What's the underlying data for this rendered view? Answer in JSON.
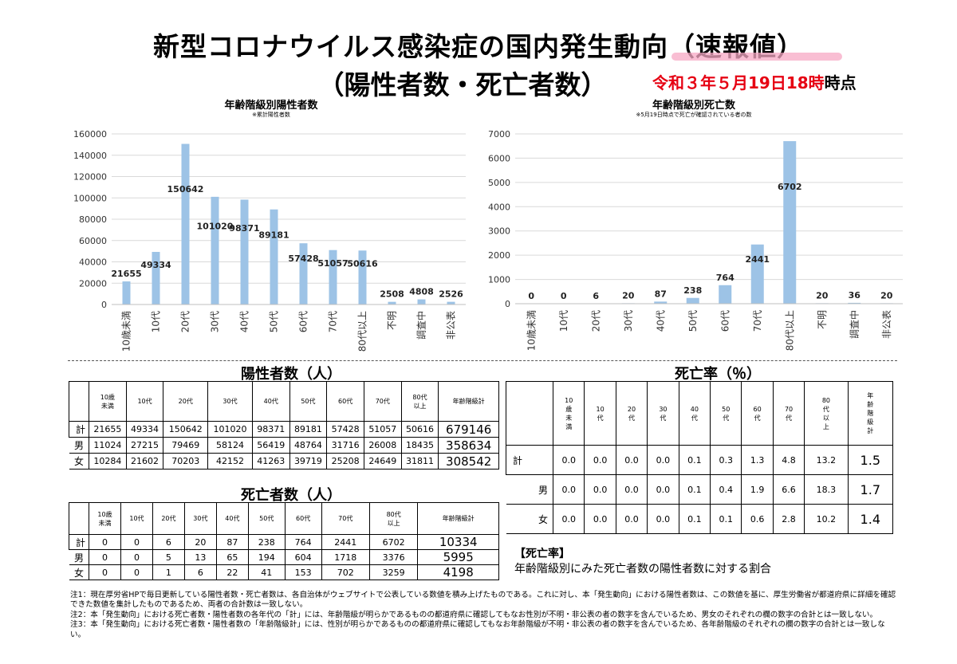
{
  "header": {
    "title_line1": "新型コロナウイルス感染症の国内発生動向（速報値）",
    "title_line2": "（陽性者数・死亡者数）",
    "date_prefix": "令和３年５月19日18時",
    "date_suffix": "時点"
  },
  "chart_data": [
    {
      "type": "bar",
      "title": "年齢階級別陽性者数",
      "subtitle": "※累計陽性者数",
      "categories": [
        "10歳未満",
        "10代",
        "20代",
        "30代",
        "40代",
        "50代",
        "60代",
        "70代",
        "80代以上",
        "不明",
        "調査中",
        "非公表"
      ],
      "values": [
        21655,
        49334,
        150642,
        101020,
        98371,
        89181,
        57428,
        51057,
        50616,
        2508,
        4808,
        2526
      ],
      "ylim": [
        0,
        160000
      ],
      "yticks": [
        0,
        20000,
        40000,
        60000,
        80000,
        100000,
        120000,
        140000,
        160000
      ],
      "grid": true,
      "color": "#9dc3e6"
    },
    {
      "type": "bar",
      "title": "年齢階級別死亡数",
      "subtitle": "※5月19日時点で死亡が確認されている者の数",
      "categories": [
        "10歳未満",
        "10代",
        "20代",
        "30代",
        "40代",
        "50代",
        "60代",
        "70代",
        "80代以上",
        "不明",
        "調査中",
        "非公表"
      ],
      "values": [
        0,
        0,
        6,
        20,
        87,
        238,
        764,
        2441,
        6702,
        20,
        36,
        20
      ],
      "ylim": [
        0,
        7000
      ],
      "yticks": [
        0,
        1000,
        2000,
        3000,
        4000,
        5000,
        6000,
        7000
      ],
      "grid": true,
      "color": "#9dc3e6"
    }
  ],
  "positive_table": {
    "title": "陽性者数（人）",
    "headers": [
      "10歳\n未満",
      "10代",
      "20代",
      "30代",
      "40代",
      "50代",
      "60代",
      "70代",
      "80代\n以上",
      "年齢階級計"
    ],
    "rows": [
      {
        "label": "計",
        "values": [
          "21655",
          "49334",
          "150642",
          "101020",
          "98371",
          "89181",
          "57428",
          "51057",
          "50616"
        ],
        "total": "679146"
      },
      {
        "label": "男",
        "values": [
          "11024",
          "27215",
          "79469",
          "58124",
          "56419",
          "48764",
          "31716",
          "26008",
          "18435"
        ],
        "total": "358634"
      },
      {
        "label": "女",
        "values": [
          "10284",
          "21602",
          "70203",
          "42152",
          "41263",
          "39719",
          "25208",
          "24649",
          "31811"
        ],
        "total": "308542"
      }
    ]
  },
  "death_table": {
    "title": "死亡者数（人）",
    "headers": [
      "10歳\n未満",
      "10代",
      "20代",
      "30代",
      "40代",
      "50代",
      "60代",
      "70代",
      "80代\n以上",
      "年齢階級計"
    ],
    "rows": [
      {
        "label": "計",
        "values": [
          "0",
          "0",
          "6",
          "20",
          "87",
          "238",
          "764",
          "2441",
          "6702"
        ],
        "total": "10334"
      },
      {
        "label": "男",
        "values": [
          "0",
          "0",
          "5",
          "13",
          "65",
          "194",
          "604",
          "1718",
          "3376"
        ],
        "total": "5995"
      },
      {
        "label": "女",
        "values": [
          "0",
          "0",
          "1",
          "6",
          "22",
          "41",
          "153",
          "702",
          "3259"
        ],
        "total": "4198"
      }
    ]
  },
  "mortality_table": {
    "title": "死亡率（％）",
    "headers": [
      "10\n歳\n未\n満",
      "10\n代",
      "20\n代",
      "30\n代",
      "40\n代",
      "50\n代",
      "60\n代",
      "70\n代",
      "80\n代\n以\n上",
      "年\n齢\n階\n級\n計"
    ],
    "rows": [
      {
        "label": "計",
        "values": [
          "0.0",
          "0.0",
          "0.0",
          "0.0",
          "0.1",
          "0.3",
          "1.3",
          "4.8",
          "13.2"
        ],
        "total": "1.5"
      },
      {
        "label": "男",
        "values": [
          "0.0",
          "0.0",
          "0.0",
          "0.0",
          "0.1",
          "0.4",
          "1.9",
          "6.6",
          "18.3"
        ],
        "total": "1.7"
      },
      {
        "label": "女",
        "values": [
          "0.0",
          "0.0",
          "0.0",
          "0.0",
          "0.1",
          "0.1",
          "0.6",
          "2.8",
          "10.2"
        ],
        "total": "1.4"
      }
    ]
  },
  "mortality_note": {
    "heading": "【死亡率】",
    "text": "年齢階級別にみた死亡者数の陽性者数に対する割合"
  },
  "notes": [
    "注1：現在厚労省HPで毎日更新している陽性者数・死亡者数は、各自治体がウェブサイトで公表している数値を積み上げたものである。これに対し、本「発生動向」における陽性者数は、この数値を基に、厚生労働省が都道府県に詳細を確認できた数値を集計したものであるため、両者の合計数は一致しない。",
    "注2：本「発生動向」における死亡者数・陽性者数の各年代の「計」には、年齢階級が明らかであるものの都道府県に確認してもなお性別が不明・非公表の者の数字を含んでいるため、男女のそれぞれの欄の数字の合計とは一致しない。",
    "注3：本「発生動向」における死亡者数・陽性者数の「年齢階級計」には、性別が明らかであるものの都道府県に確認してもなお年齢階級が不明・非公表の者の数字を含んでいるため、各年齢階級のそれぞれの欄の数字の合計とは一致しない。"
  ]
}
